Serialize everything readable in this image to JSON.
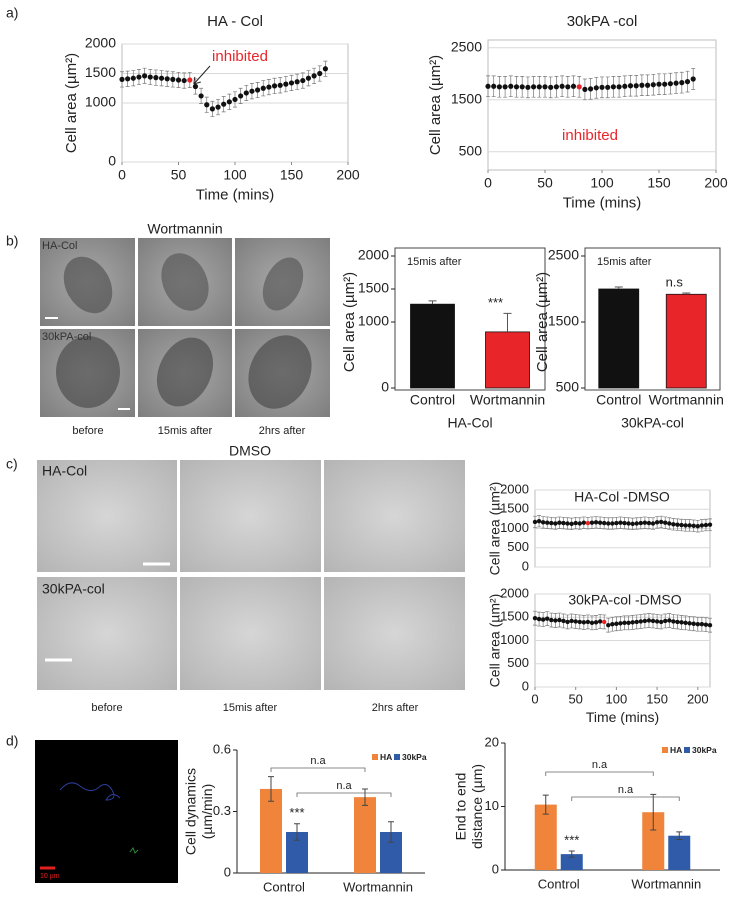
{
  "figure": {
    "panel_labels": [
      "a)",
      "b)",
      "c)",
      "d)"
    ],
    "b_header": "Wortmannin",
    "b_rows": [
      "HA-Col",
      "30kPA-col"
    ],
    "b_columns": [
      "before",
      "15mis after",
      "2hrs after"
    ],
    "c_header": "DMSO",
    "c_rows": [
      "HA-Col",
      "30kPA-col"
    ],
    "c_columns": [
      "before",
      "15mis after",
      "2hrs after"
    ],
    "d_scale": "10 µm"
  },
  "chart_data": [
    {
      "type": "line",
      "title": "HA - Col",
      "xlabel": "Time (mins)",
      "ylabel": "Cell area (µm²)",
      "annotations": [
        {
          "text": "inhibited",
          "color": "#e8262a"
        }
      ],
      "x": [
        0,
        5,
        10,
        15,
        20,
        25,
        30,
        35,
        40,
        45,
        50,
        55,
        60,
        65,
        70,
        75,
        80,
        85,
        90,
        95,
        100,
        105,
        110,
        115,
        120,
        125,
        130,
        135,
        140,
        145,
        150,
        155,
        160,
        165,
        170,
        175,
        180
      ],
      "values": [
        1400,
        1410,
        1420,
        1440,
        1460,
        1440,
        1430,
        1420,
        1410,
        1400,
        1390,
        1380,
        1390,
        1280,
        1120,
        970,
        900,
        930,
        980,
        1020,
        1060,
        1120,
        1170,
        1200,
        1220,
        1250,
        1270,
        1290,
        1300,
        1320,
        1340,
        1360,
        1380,
        1420,
        1460,
        1500,
        1580
      ],
      "errors": [
        130,
        130,
        130,
        130,
        130,
        130,
        130,
        130,
        130,
        130,
        130,
        130,
        130,
        130,
        130,
        130,
        130,
        130,
        130,
        130,
        130,
        130,
        130,
        130,
        130,
        130,
        130,
        130,
        130,
        130,
        130,
        130,
        130,
        130,
        130,
        130,
        130
      ],
      "color": "#111111",
      "highlight_index": 12,
      "highlight_color": "#e8262a",
      "xlim": [
        0,
        200
      ],
      "xticks": [
        0,
        50,
        100,
        150,
        200
      ],
      "ylim": [
        0,
        2000
      ],
      "yticks": [
        0,
        1000,
        1500,
        2000
      ],
      "grid": true
    },
    {
      "type": "line",
      "title": "30kPA -col",
      "xlabel": "Time (mins)",
      "ylabel": "Cell area (µm²)",
      "annotations": [
        {
          "text": "inhibited",
          "color": "#e8262a"
        }
      ],
      "x": [
        0,
        5,
        10,
        15,
        20,
        25,
        30,
        35,
        40,
        45,
        50,
        55,
        60,
        65,
        70,
        75,
        80,
        85,
        90,
        95,
        100,
        105,
        110,
        115,
        120,
        125,
        130,
        135,
        140,
        145,
        150,
        155,
        160,
        165,
        170,
        175,
        180
      ],
      "values": [
        1760,
        1760,
        1750,
        1750,
        1760,
        1750,
        1750,
        1740,
        1750,
        1750,
        1750,
        1740,
        1750,
        1760,
        1750,
        1760,
        1750,
        1700,
        1710,
        1730,
        1740,
        1740,
        1750,
        1750,
        1760,
        1770,
        1770,
        1780,
        1780,
        1790,
        1800,
        1800,
        1810,
        1820,
        1830,
        1850,
        1900
      ],
      "errors": [
        200,
        200,
        200,
        200,
        200,
        200,
        200,
        200,
        200,
        200,
        200,
        200,
        200,
        200,
        200,
        200,
        200,
        200,
        200,
        200,
        200,
        200,
        200,
        200,
        200,
        200,
        200,
        200,
        200,
        200,
        200,
        200,
        200,
        200,
        200,
        200,
        200
      ],
      "color": "#111111",
      "highlight_index": 16,
      "highlight_color": "#e8262a",
      "xlim": [
        0,
        200
      ],
      "xticks": [
        0,
        50,
        100,
        150,
        200
      ],
      "ylim": [
        150,
        2650
      ],
      "yticks": [
        500,
        1500,
        2500
      ],
      "grid": true
    },
    {
      "type": "bar",
      "xlabel": "HA-Col",
      "ylabel": "Cell area (µm²)",
      "annotations": [
        {
          "text": "15mis after"
        },
        {
          "text": "***"
        }
      ],
      "categories": [
        "Control",
        "Wortmannin"
      ],
      "values": [
        1270,
        850
      ],
      "errors": [
        50,
        280
      ],
      "colors": [
        "#111111",
        "#e8262a"
      ],
      "ylim": [
        0,
        2000
      ],
      "yticks": [
        0,
        1000,
        1500,
        2000
      ]
    },
    {
      "type": "bar",
      "xlabel": "30kPA-col",
      "ylabel": "Cell area (µm²)",
      "annotations": [
        {
          "text": "15mis after"
        },
        {
          "text": "n.s"
        }
      ],
      "categories": [
        "Control",
        "Wortmannin"
      ],
      "values": [
        2000,
        1920
      ],
      "errors": [
        30,
        20
      ],
      "colors": [
        "#111111",
        "#e8262a"
      ],
      "ylim": [
        500,
        2500
      ],
      "yticks": [
        500,
        1500,
        2500
      ]
    },
    {
      "type": "line",
      "title": "HA-Col -DMSO",
      "ylabel": "Cell area (µm²)",
      "x": [
        0,
        5,
        10,
        15,
        20,
        25,
        30,
        35,
        40,
        45,
        50,
        55,
        60,
        65,
        70,
        75,
        80,
        85,
        90,
        95,
        100,
        105,
        110,
        115,
        120,
        125,
        130,
        135,
        140,
        145,
        150,
        155,
        160,
        165,
        170,
        175,
        180,
        185,
        190,
        195,
        200,
        205,
        210,
        215
      ],
      "values": [
        1170,
        1190,
        1160,
        1150,
        1140,
        1130,
        1150,
        1140,
        1130,
        1120,
        1140,
        1130,
        1150,
        1140,
        1150,
        1160,
        1150,
        1140,
        1130,
        1130,
        1140,
        1150,
        1140,
        1130,
        1120,
        1130,
        1140,
        1150,
        1140,
        1130,
        1160,
        1170,
        1150,
        1130,
        1110,
        1100,
        1090,
        1080,
        1080,
        1070,
        1060,
        1080,
        1090,
        1100
      ],
      "errors": [
        150,
        150,
        150,
        150,
        150,
        150,
        150,
        150,
        150,
        150,
        150,
        150,
        150,
        150,
        150,
        150,
        150,
        150,
        150,
        150,
        150,
        150,
        150,
        150,
        150,
        150,
        150,
        150,
        150,
        150,
        150,
        150,
        150,
        150,
        150,
        150,
        150,
        150,
        150,
        150,
        150,
        150,
        150,
        150
      ],
      "color": "#111111",
      "highlight_index": 13,
      "highlight_color": "#e8262a",
      "xlim": [
        0,
        215
      ],
      "ylim": [
        0,
        2000
      ],
      "yticks": [
        0,
        500,
        1000,
        1500,
        2000
      ],
      "grid": true
    },
    {
      "type": "line",
      "title": "30kPA-col -DMSO",
      "xlabel": "Time (mins)",
      "ylabel": "Cell area (µm²)",
      "x": [
        0,
        5,
        10,
        15,
        20,
        25,
        30,
        35,
        40,
        45,
        50,
        55,
        60,
        65,
        70,
        75,
        80,
        85,
        90,
        95,
        100,
        105,
        110,
        115,
        120,
        125,
        130,
        135,
        140,
        145,
        150,
        155,
        160,
        165,
        170,
        175,
        180,
        185,
        190,
        195,
        200,
        205,
        210,
        215
      ],
      "values": [
        1480,
        1460,
        1450,
        1470,
        1440,
        1430,
        1440,
        1420,
        1400,
        1420,
        1410,
        1400,
        1390,
        1400,
        1380,
        1390,
        1410,
        1400,
        1330,
        1350,
        1360,
        1370,
        1380,
        1380,
        1390,
        1400,
        1410,
        1420,
        1430,
        1420,
        1410,
        1400,
        1420,
        1430,
        1410,
        1400,
        1390,
        1380,
        1370,
        1360,
        1350,
        1350,
        1340,
        1330
      ],
      "errors": [
        150,
        150,
        150,
        150,
        150,
        150,
        150,
        150,
        150,
        150,
        150,
        150,
        150,
        150,
        150,
        150,
        150,
        150,
        150,
        150,
        150,
        150,
        150,
        150,
        150,
        150,
        150,
        150,
        150,
        150,
        150,
        150,
        150,
        150,
        150,
        150,
        150,
        150,
        150,
        150,
        150,
        150,
        150,
        150
      ],
      "color": "#111111",
      "highlight_index": 17,
      "highlight_color": "#e8262a",
      "xlim": [
        0,
        215
      ],
      "xticks": [
        0,
        50,
        100,
        150,
        200
      ],
      "ylim": [
        0,
        2000
      ],
      "yticks": [
        0,
        500,
        1000,
        1500,
        2000
      ],
      "grid": true
    },
    {
      "type": "grouped_bar",
      "ylabel": [
        "Cell dynamics",
        "(µm/min)"
      ],
      "annotations": [
        {
          "text": "n.a"
        },
        {
          "text": "n.a"
        },
        {
          "text": "***"
        }
      ],
      "categories": [
        "Control",
        "Wortmannin"
      ],
      "series": [
        {
          "name": "HA",
          "color": "#f0843a",
          "values": [
            0.41,
            0.37
          ],
          "errors": [
            0.06,
            0.04
          ]
        },
        {
          "name": "30kPa",
          "color": "#2f5ba8",
          "values": [
            0.2,
            0.2
          ],
          "errors": [
            0.04,
            0.05
          ]
        }
      ],
      "ylim": [
        0,
        0.6
      ],
      "yticks": [
        0,
        0.3,
        0.6
      ]
    },
    {
      "type": "grouped_bar",
      "ylabel": [
        "End to end",
        "distance (µm)"
      ],
      "annotations": [
        {
          "text": "n.a"
        },
        {
          "text": "n.a"
        },
        {
          "text": "***"
        }
      ],
      "categories": [
        "Control",
        "Wortmannin"
      ],
      "series": [
        {
          "name": "HA",
          "color": "#f0843a",
          "values": [
            10.3,
            9.1
          ],
          "errors": [
            1.5,
            2.8
          ]
        },
        {
          "name": "30kPa",
          "color": "#2f5ba8",
          "values": [
            2.5,
            5.4
          ],
          "errors": [
            0.5,
            0.6
          ]
        }
      ],
      "ylim": [
        0,
        20
      ],
      "yticks": [
        0,
        10,
        20
      ]
    }
  ]
}
